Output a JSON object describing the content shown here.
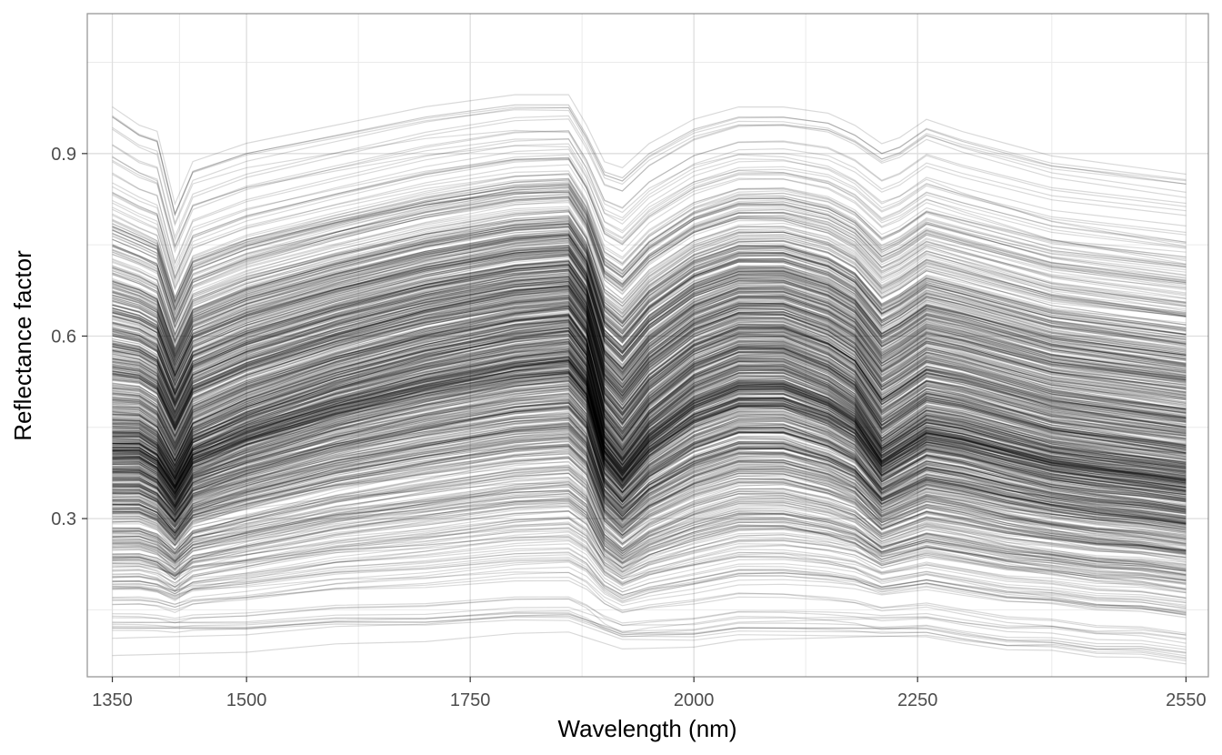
{
  "chart_data": {
    "type": "line",
    "title": "",
    "xlabel": "Wavelength (nm)",
    "ylabel": "Reflectance factor",
    "xlim": [
      1322,
      2575
    ],
    "ylim": [
      0.04,
      1.13
    ],
    "x_ticks": [
      1350,
      1500,
      1750,
      2000,
      2250,
      2550
    ],
    "x_tick_labels": [
      "1350",
      "1500",
      "1750",
      "2000",
      "2250",
      "2550"
    ],
    "x_minor_gridlines": [
      1425,
      1625,
      1875,
      2125,
      2400
    ],
    "y_ticks": [
      0.3,
      0.6,
      0.9
    ],
    "y_tick_labels": [
      "0.3",
      "0.6",
      "0.9"
    ],
    "y_minor_gridlines": [
      0.15,
      0.45,
      0.75,
      1.05
    ],
    "grid": true,
    "legend": "none",
    "line_color": "#000000",
    "line_alpha": 0.15,
    "n_spectra_approx": 900,
    "representative_series": [
      {
        "x": [
          1350,
          1380,
          1400,
          1420,
          1440,
          1500,
          1600,
          1700,
          1800,
          1860,
          1880,
          1900,
          1920,
          1950,
          2000,
          2050,
          2100,
          2150,
          2180,
          2210,
          2230,
          2260,
          2300,
          2350,
          2400,
          2450,
          2500,
          2550
        ],
        "values": [
          0.44,
          0.44,
          0.42,
          0.37,
          0.43,
          0.47,
          0.52,
          0.56,
          0.59,
          0.6,
          0.56,
          0.44,
          0.4,
          0.46,
          0.52,
          0.55,
          0.55,
          0.52,
          0.49,
          0.42,
          0.44,
          0.47,
          0.46,
          0.44,
          0.42,
          0.41,
          0.4,
          0.39
        ]
      },
      {
        "x": [
          1350,
          1380,
          1400,
          1420,
          1440,
          1500,
          1600,
          1700,
          1800,
          1860,
          1880,
          1900,
          1920,
          1950,
          2000,
          2050,
          2100,
          2150,
          2180,
          2210,
          2230,
          2260,
          2300,
          2350,
          2400,
          2450,
          2500,
          2550
        ],
        "values": [
          0.96,
          0.93,
          0.92,
          0.8,
          0.87,
          0.9,
          0.93,
          0.96,
          0.98,
          0.98,
          0.93,
          0.87,
          0.86,
          0.9,
          0.94,
          0.96,
          0.96,
          0.95,
          0.93,
          0.9,
          0.91,
          0.94,
          0.92,
          0.9,
          0.88,
          0.87,
          0.86,
          0.85
        ]
      },
      {
        "x": [
          1350,
          1380,
          1400,
          1420,
          1440,
          1500,
          1600,
          1700,
          1800,
          1860,
          1880,
          1900,
          1920,
          1950,
          2000,
          2050,
          2100,
          2150,
          2180,
          2210,
          2230,
          2260,
          2300,
          2350,
          2400,
          2450,
          2500,
          2550
        ],
        "values": [
          0.12,
          0.12,
          0.12,
          0.12,
          0.12,
          0.12,
          0.13,
          0.13,
          0.14,
          0.14,
          0.13,
          0.12,
          0.11,
          0.11,
          0.11,
          0.12,
          0.12,
          0.12,
          0.12,
          0.12,
          0.12,
          0.12,
          0.11,
          0.1,
          0.1,
          0.09,
          0.09,
          0.08
        ]
      }
    ]
  }
}
